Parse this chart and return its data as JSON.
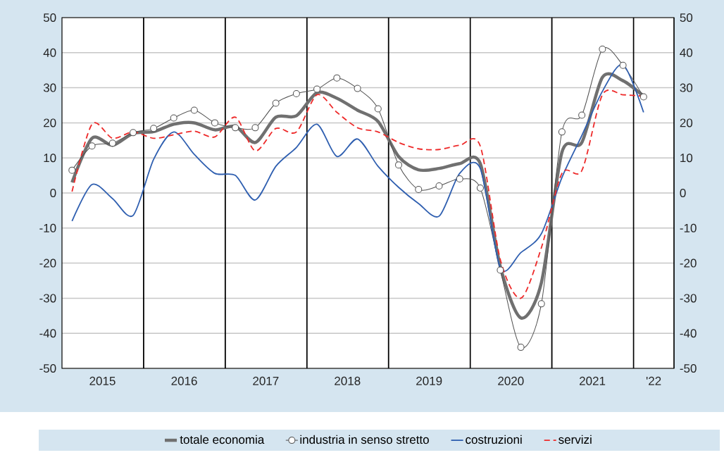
{
  "chart_data": {
    "type": "line",
    "x": [
      "2015-02-15",
      "2015-05-15",
      "2015-08-15",
      "2015-11-15",
      "2016-02-15",
      "2016-05-15",
      "2016-08-15",
      "2016-11-15",
      "2017-02-15",
      "2017-05-15",
      "2017-08-15",
      "2017-11-15",
      "2018-02-15",
      "2018-05-15",
      "2018-08-15",
      "2018-11-15",
      "2019-02-15",
      "2019-05-15",
      "2019-08-15",
      "2019-11-15",
      "2020-02-15",
      "2020-05-15",
      "2020-08-15",
      "2020-11-15",
      "2021-02-15",
      "2021-05-15",
      "2021-08-15",
      "2021-11-15",
      "2022-02-15"
    ],
    "series": [
      {
        "name": "totale economia",
        "color": "#707070",
        "values": [
          3,
          15.6,
          13.6,
          17,
          17.5,
          19.6,
          20,
          18,
          19,
          14.4,
          21.6,
          22,
          28.6,
          27,
          23.6,
          20.4,
          10.4,
          6.6,
          7,
          8.4,
          8.4,
          -21,
          -35.6,
          -25.6,
          11.6,
          14.4,
          33,
          32,
          27.6
        ]
      },
      {
        "name": "industria in senso stretto",
        "color": "#505050",
        "marker": "circle",
        "values": [
          6.5,
          13.4,
          14.2,
          17.2,
          18.4,
          21.4,
          23.6,
          20,
          18.6,
          18.6,
          25.6,
          28.3,
          29.6,
          32.8,
          29.8,
          24,
          8,
          1,
          2,
          4,
          1.4,
          -22,
          -44,
          -31.6,
          17.4,
          22.2,
          41,
          36.4,
          27.4
        ]
      },
      {
        "name": "costruzioni",
        "color": "#2f5fb0",
        "values": [
          -8,
          2.4,
          -1.6,
          -6.4,
          9.6,
          17.4,
          11,
          5.6,
          5,
          -2,
          7.6,
          13,
          19.6,
          10.4,
          15.4,
          7.6,
          1.6,
          -3,
          -6.6,
          5.6,
          7,
          -21.4,
          -17,
          -11.6,
          4.4,
          16.4,
          29,
          36.6,
          23
        ]
      },
      {
        "name": "servizi",
        "color": "#ee2a2a",
        "line_style": "dashed",
        "values": [
          0.4,
          19.6,
          15.6,
          17.4,
          15.6,
          16.6,
          17.6,
          16,
          21.6,
          12,
          18.4,
          17.4,
          28,
          23,
          18.6,
          17.4,
          14.4,
          12.6,
          12.4,
          13.6,
          13.4,
          -19,
          -30,
          -15.6,
          5.6,
          6.4,
          28,
          28,
          27.6
        ]
      }
    ],
    "xlim": [
      "2015-01-01",
      "2022-07-01"
    ],
    "xticks": [
      {
        "value": "2015-07-01",
        "label": "2015"
      },
      {
        "value": "2016-07-01",
        "label": "2016"
      },
      {
        "value": "2017-07-01",
        "label": "2017"
      },
      {
        "value": "2018-07-01",
        "label": "2018"
      },
      {
        "value": "2019-07-01",
        "label": "2019"
      },
      {
        "value": "2020-07-01",
        "label": "2020"
      },
      {
        "value": "2021-07-01",
        "label": "2021"
      },
      {
        "value": "2022-04-01",
        "label": "'22"
      }
    ],
    "ylim": [
      -50,
      50
    ],
    "yticks": [
      -50,
      -40,
      -30,
      -20,
      -10,
      0,
      10,
      20,
      30,
      40,
      50
    ],
    "y2lim": [
      -50,
      50
    ],
    "y2ticks": [
      -50,
      -40,
      -30,
      -20,
      -10,
      0,
      10,
      20,
      30,
      40,
      50
    ],
    "ref_lines": [
      {
        "axis": "x",
        "value": "2016-01-01",
        "color": "#000000"
      },
      {
        "axis": "x",
        "value": "2017-01-01",
        "color": "#000000"
      },
      {
        "axis": "x",
        "value": "2018-01-01",
        "color": "#000000"
      },
      {
        "axis": "x",
        "value": "2019-01-01",
        "color": "#000000"
      },
      {
        "axis": "x",
        "value": "2020-01-01",
        "color": "#000000"
      },
      {
        "axis": "x",
        "value": "2021-01-01",
        "color": "#000000"
      },
      {
        "axis": "x",
        "value": "2022-01-01",
        "color": "#000000"
      }
    ],
    "grid": "y",
    "legend": "bottom"
  }
}
